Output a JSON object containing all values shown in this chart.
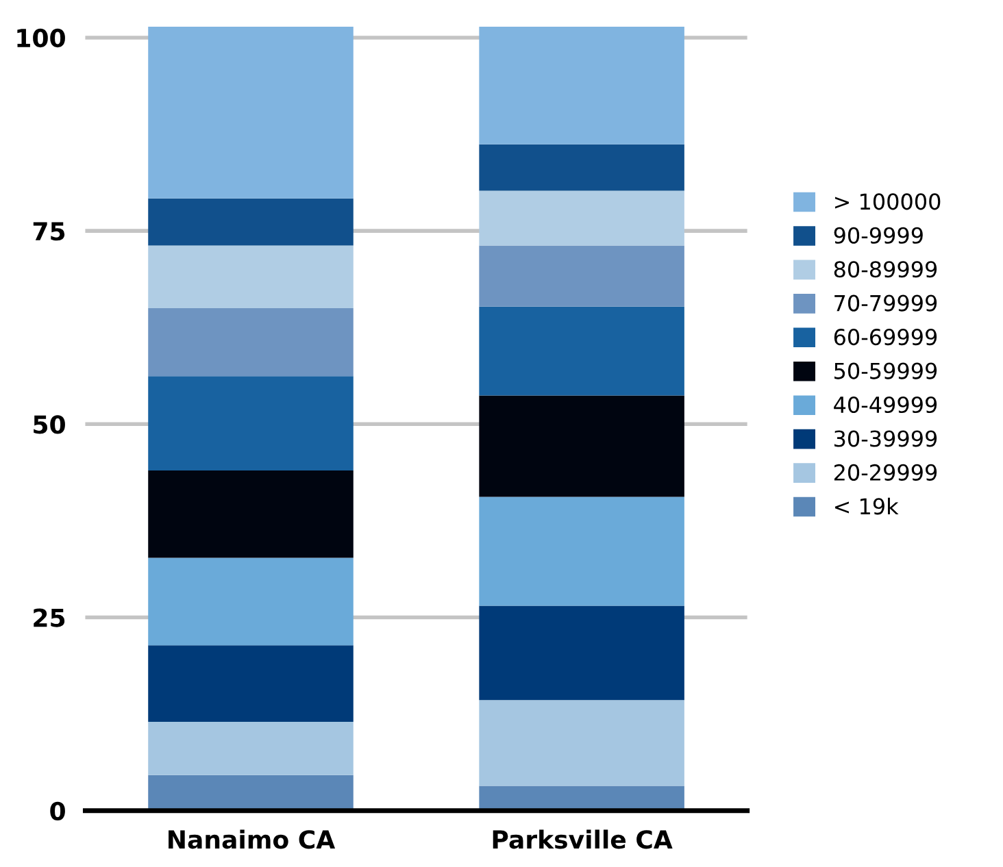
{
  "chart_data": {
    "type": "bar",
    "stacked": true,
    "categories": [
      "Nanaimo CA",
      "Parksville CA"
    ],
    "series": [
      {
        "name": "< 19k",
        "color": "#5b87b7",
        "values": [
          4.6,
          3.2
        ]
      },
      {
        "name": "20-29999",
        "color": "#a5c6e1",
        "values": [
          6.9,
          11.1
        ]
      },
      {
        "name": "30-39999",
        "color": "#003a78",
        "values": [
          9.9,
          12.2
        ]
      },
      {
        "name": "40-49999",
        "color": "#6aaad9",
        "values": [
          11.3,
          14.1
        ]
      },
      {
        "name": "50-59999",
        "color": "#000510",
        "values": [
          11.3,
          13.1
        ]
      },
      {
        "name": "60-69999",
        "color": "#1862a0",
        "values": [
          12.2,
          11.5
        ]
      },
      {
        "name": "70-79999",
        "color": "#6e94c1",
        "values": [
          8.8,
          7.9
        ]
      },
      {
        "name": "80-89999",
        "color": "#b0cde4",
        "values": [
          8.1,
          7.1
        ]
      },
      {
        "name": "90-9999",
        "color": "#11508c",
        "values": [
          6.1,
          6.0
        ]
      },
      {
        "name": "> 100000",
        "color": "#80b4e0",
        "values": [
          22.2,
          15.2
        ]
      }
    ],
    "ylim": [
      0,
      101.5
    ],
    "yticks": [
      0,
      25,
      50,
      75,
      100
    ],
    "grid": "y",
    "legend": "right"
  }
}
